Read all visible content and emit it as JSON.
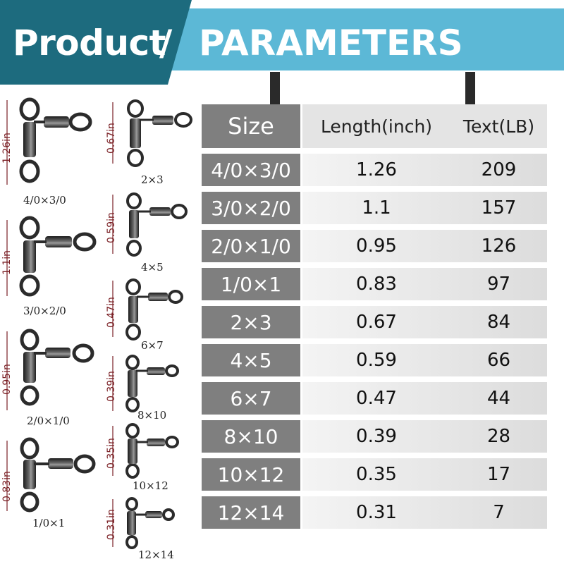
{
  "banner": {
    "title_left": "Product",
    "title_slash": "/",
    "title_right": "PARAMETERS",
    "colors": {
      "dark": "#1d6b7e",
      "light": "#5cb8d6"
    }
  },
  "table": {
    "headers": {
      "size": "Size",
      "length": "Length(inch)",
      "test": "Text(LB)"
    },
    "rows": [
      {
        "size": "4/0×3/0",
        "length": "1.26",
        "lb": "209"
      },
      {
        "size": "3/0×2/0",
        "length": "1.1",
        "lb": "157"
      },
      {
        "size": "2/0×1/0",
        "length": "0.95",
        "lb": "126"
      },
      {
        "size": "1/0×1",
        "length": "0.83",
        "lb": "97"
      },
      {
        "size": "2×3",
        "length": "0.67",
        "lb": "84"
      },
      {
        "size": "4×5",
        "length": "0.59",
        "lb": "66"
      },
      {
        "size": "6×7",
        "length": "0.47",
        "lb": "44"
      },
      {
        "size": "8×10",
        "length": "0.39",
        "lb": "28"
      },
      {
        "size": "10×12",
        "length": "0.35",
        "lb": "17"
      },
      {
        "size": "12×14",
        "length": "0.31",
        "lb": "7"
      }
    ]
  },
  "swivels": [
    {
      "caption": "4/0×3/0",
      "dim": "1.26in"
    },
    {
      "caption": "3/0×2/0",
      "dim": "1.1in"
    },
    {
      "caption": "2/0×1/0",
      "dim": "0.95in"
    },
    {
      "caption": "1/0×1",
      "dim": "0.83in"
    },
    {
      "caption": "2×3",
      "dim": "0.67in"
    },
    {
      "caption": "4×5",
      "dim": "0.59in"
    },
    {
      "caption": "6×7",
      "dim": "0.47in"
    },
    {
      "caption": "8×10",
      "dim": "0.39in"
    },
    {
      "caption": "10×12",
      "dim": "0.35in"
    },
    {
      "caption": "12×14",
      "dim": "0.31in"
    }
  ]
}
